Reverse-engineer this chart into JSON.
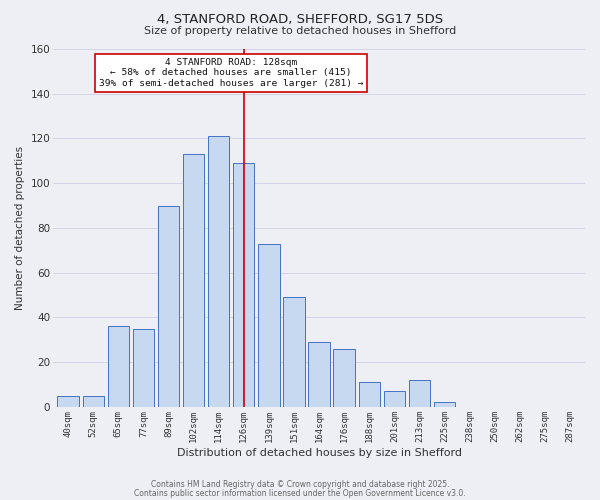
{
  "title": "4, STANFORD ROAD, SHEFFORD, SG17 5DS",
  "subtitle": "Size of property relative to detached houses in Shefford",
  "xlabel": "Distribution of detached houses by size in Shefford",
  "ylabel": "Number of detached properties",
  "bar_labels": [
    "40sqm",
    "52sqm",
    "65sqm",
    "77sqm",
    "89sqm",
    "102sqm",
    "114sqm",
    "126sqm",
    "139sqm",
    "151sqm",
    "164sqm",
    "176sqm",
    "188sqm",
    "201sqm",
    "213sqm",
    "225sqm",
    "238sqm",
    "250sqm",
    "262sqm",
    "275sqm",
    "287sqm"
  ],
  "bar_values": [
    5,
    5,
    36,
    35,
    90,
    113,
    121,
    109,
    73,
    49,
    29,
    26,
    11,
    7,
    12,
    2,
    0,
    0,
    0,
    0,
    0
  ],
  "bar_color": "#c6d9f1",
  "bar_edge_color": "#4472c4",
  "vline_x_idx": 7,
  "vline_color": "#cc0000",
  "ylim": [
    0,
    160
  ],
  "yticks": [
    0,
    20,
    40,
    60,
    80,
    100,
    120,
    140,
    160
  ],
  "annotation_line0": "4 STANFORD ROAD: 128sqm",
  "annotation_line1": "← 58% of detached houses are smaller (415)",
  "annotation_line2": "39% of semi-detached houses are larger (281) →",
  "annotation_box_color": "#ffffff",
  "annotation_box_edge": "#cc0000",
  "grid_color": "#d4d4e8",
  "bg_color": "#eeeeF5",
  "footer1": "Contains HM Land Registry data © Crown copyright and database right 2025.",
  "footer2": "Contains public sector information licensed under the Open Government Licence v3.0."
}
